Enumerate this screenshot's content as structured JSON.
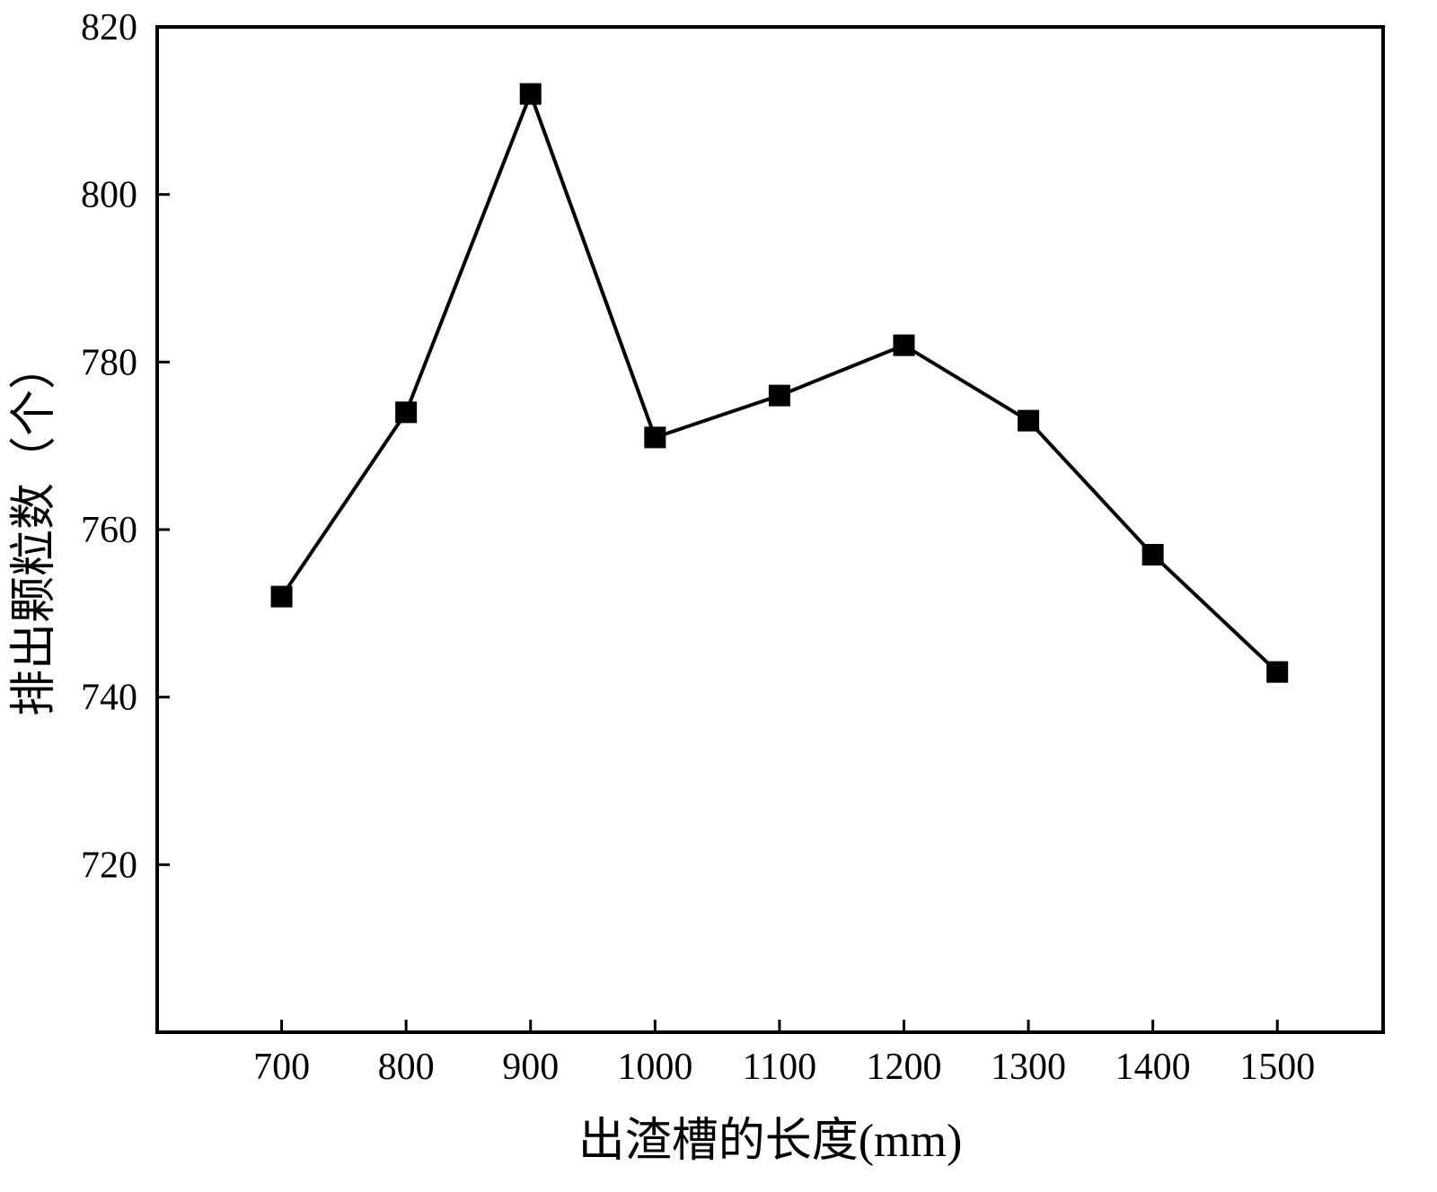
{
  "chart_data": {
    "type": "line",
    "title": "",
    "xlabel": "出渣槽的长度(mm)",
    "ylabel": "排出颗粒数（个）",
    "x": [
      700,
      800,
      900,
      1000,
      1100,
      1200,
      1300,
      1400,
      1500
    ],
    "y": [
      752,
      774,
      812,
      771,
      776,
      782,
      773,
      757,
      743
    ],
    "xlim": [
      600,
      1585
    ],
    "ylim": [
      700,
      820
    ],
    "xticks": [
      700,
      800,
      900,
      1000,
      1100,
      1200,
      1300,
      1400,
      1500
    ],
    "yticks": [
      720,
      740,
      760,
      780,
      800,
      820
    ],
    "line_color": "#000000",
    "axis_color": "#000000",
    "marker": "square",
    "marker_size": 24,
    "line_width": 4,
    "grid": false,
    "legend_position": "none"
  }
}
